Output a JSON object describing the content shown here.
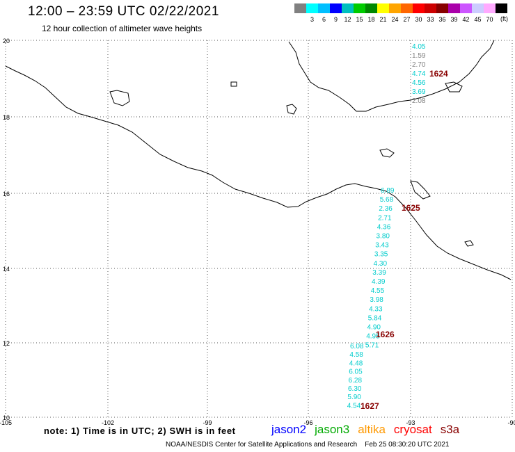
{
  "header": {
    "title": "12:00 – 23:59 UTC 02/22/2021",
    "subtitle": "12 hour collection of altimeter wave heights"
  },
  "legend": {
    "unit": "(ft)",
    "colors": [
      "#808080",
      "#00ffff",
      "#00bfff",
      "#0000ff",
      "#00bfbf",
      "#00cc00",
      "#008800",
      "#ffff00",
      "#ffa500",
      "#ff6600",
      "#ff0000",
      "#cc0000",
      "#880000",
      "#aa00aa",
      "#cc55ff",
      "#ccccff",
      "#ffaaff",
      "#000000"
    ],
    "labels": [
      "",
      "3",
      "6",
      "9",
      "12",
      "15",
      "18",
      "21",
      "24",
      "27",
      "30",
      "33",
      "36",
      "39",
      "42",
      "45",
      "70",
      ""
    ]
  },
  "axes": {
    "lon_labels": [
      "-105",
      "-102",
      "-99",
      "-96",
      "-93",
      "-90"
    ],
    "lat_labels": [
      "20",
      "18",
      "16",
      "14",
      "12",
      "10"
    ]
  },
  "tracks": [
    {
      "id": "1624",
      "color": "#00cccc",
      "values": [
        "4.05",
        "1.59",
        "2.70",
        "4.74",
        "4.56",
        "3.69",
        "2.08"
      ],
      "value_colors": [
        "#00cccc",
        "#808080",
        "#808080",
        "#00cccc",
        "#00cccc",
        "#00cccc",
        "#808080"
      ]
    },
    {
      "id": "1625",
      "color": "#00cccc",
      "values": [
        "6.89",
        "5.68",
        "2.36",
        "2.71",
        "4.36",
        "3.80",
        "3.43",
        "3.35",
        "4.30",
        "3.39",
        "4.39",
        "4.55",
        "3.98",
        "4.33",
        "5.84",
        "4.90",
        "4.95",
        "5.71"
      ]
    },
    {
      "id": "1626",
      "color": "#00cccc",
      "values": [
        "6.08",
        "4.58",
        "4.48",
        "6.05",
        "6.28",
        "6.30",
        "5.90",
        "4.54"
      ]
    },
    {
      "id": "1627",
      "color": "#00cccc",
      "values": []
    }
  ],
  "cycle_label_color": "#880000",
  "footer": {
    "note": "note: 1) Time is in UTC; 2) SWH is in feet",
    "satellites": [
      {
        "name": "jason2",
        "color": "#0000ff"
      },
      {
        "name": "jason3",
        "color": "#00aa00"
      },
      {
        "name": "altika",
        "color": "#ff9900"
      },
      {
        "name": "cryosat",
        "color": "#ff0000"
      },
      {
        "name": "s3a",
        "color": "#880000"
      }
    ],
    "credit": "NOAA/NESDIS Center for Satellite Applications and Research",
    "timestamp": "Feb 25 08:30:20 UTC 2021"
  }
}
